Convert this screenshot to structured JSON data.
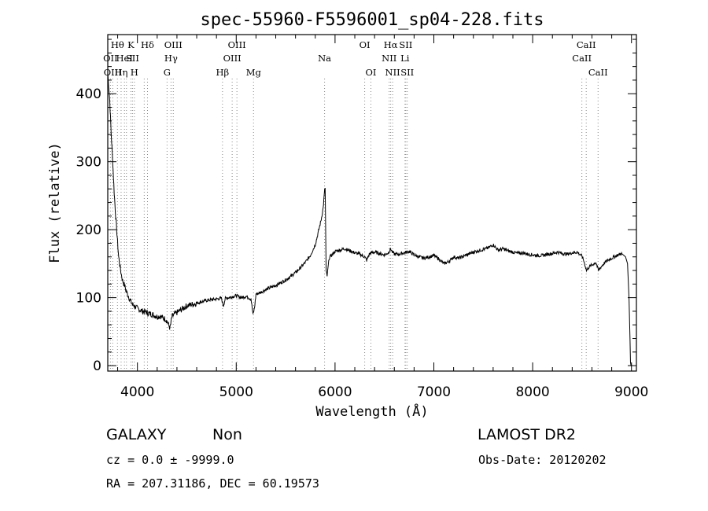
{
  "chart_data": {
    "type": "line",
    "title": "spec-55960-F5596001_sp04-228.fits",
    "xlabel": "Wavelength (Å)",
    "ylabel": "Flux (relative)",
    "xlim": [
      3700,
      9050
    ],
    "ylim": [
      -8,
      487
    ],
    "x_ticks": [
      4000,
      5000,
      6000,
      7000,
      8000,
      9000
    ],
    "y_ticks": [
      0,
      100,
      200,
      300,
      400
    ],
    "grid": false,
    "line_color": "#000000",
    "series": [
      {
        "x": [
          3700,
          3720,
          3735,
          3750,
          3765,
          3780,
          3795,
          3810,
          3830,
          3850,
          3870,
          3890,
          3910,
          3930,
          3950,
          3970,
          3990,
          4010,
          4030,
          4050,
          4080,
          4110,
          4140,
          4170,
          4200,
          4230,
          4260,
          4290,
          4310,
          4330,
          4350,
          4380,
          4420,
          4460,
          4500,
          4550,
          4600,
          4650,
          4700,
          4750,
          4800,
          4850,
          4870,
          4890,
          4920,
          4950,
          5000,
          5050,
          5100,
          5150,
          5170,
          5185,
          5200,
          5250,
          5300,
          5350,
          5400,
          5450,
          5500,
          5550,
          5600,
          5650,
          5700,
          5750,
          5800,
          5830,
          5860,
          5880,
          5890,
          5895,
          5900,
          5910,
          5920,
          5940,
          5960,
          5980,
          6000,
          6050,
          6100,
          6150,
          6200,
          6250,
          6300,
          6320,
          6350,
          6400,
          6450,
          6500,
          6540,
          6563,
          6580,
          6600,
          6650,
          6700,
          6750,
          6800,
          6850,
          6900,
          6950,
          7000,
          7050,
          7100,
          7150,
          7200,
          7250,
          7300,
          7350,
          7400,
          7450,
          7500,
          7550,
          7580,
          7600,
          7650,
          7700,
          7750,
          7800,
          7850,
          7900,
          7950,
          8000,
          8050,
          8100,
          8150,
          8200,
          8250,
          8300,
          8350,
          8400,
          8450,
          8500,
          8520,
          8545,
          8570,
          8600,
          8640,
          8665,
          8690,
          8720,
          8750,
          8800,
          8850,
          8900,
          8940,
          8960,
          8975,
          8985,
          8990,
          8995
        ],
        "y": [
          430,
          390,
          340,
          300,
          255,
          220,
          190,
          160,
          140,
          125,
          118,
          108,
          102,
          95,
          90,
          88,
          85,
          83,
          82,
          80,
          79,
          77,
          76,
          74,
          72,
          73,
          70,
          68,
          62,
          55,
          72,
          76,
          80,
          84,
          88,
          90,
          92,
          94,
          96,
          97,
          98,
          99,
          88,
          99,
          100,
          101,
          103,
          100,
          102,
          98,
          75,
          85,
          105,
          108,
          112,
          115,
          118,
          122,
          126,
          131,
          137,
          144,
          152,
          162,
          178,
          196,
          215,
          232,
          250,
          258,
          262,
          138,
          132,
          158,
          162,
          165,
          168,
          170,
          172,
          169,
          166,
          164,
          160,
          155,
          165,
          167,
          165,
          163,
          166,
          172,
          167,
          164,
          164,
          166,
          168,
          163,
          160,
          158,
          160,
          162,
          157,
          150,
          153,
          160,
          158,
          161,
          164,
          167,
          169,
          171,
          173,
          176,
          178,
          170,
          172,
          169,
          167,
          165,
          166,
          164,
          163,
          162,
          162,
          164,
          165,
          167,
          165,
          164,
          166,
          167,
          161,
          153,
          140,
          145,
          148,
          152,
          140,
          145,
          150,
          154,
          158,
          162,
          165,
          160,
          150,
          100,
          40,
          5,
          0
        ]
      }
    ],
    "lines": [
      {
        "x": 3727,
        "row": 1,
        "label": "OII"
      },
      {
        "x": 3750,
        "row": 2,
        "label": "OIII"
      },
      {
        "x": 3798,
        "row": 0,
        "label": "Hθ"
      },
      {
        "x": 3835,
        "row": 2,
        "label": "Hη"
      },
      {
        "x": 3869,
        "row": 1,
        "label": "HeI"
      },
      {
        "x": 3889,
        "row": 1,
        "label": ""
      },
      {
        "x": 3934,
        "row": 0,
        "label": "K"
      },
      {
        "x": 3950,
        "row": 1,
        "label": "SII"
      },
      {
        "x": 3969,
        "row": 2,
        "label": "H"
      },
      {
        "x": 4069,
        "row": 1,
        "label": ""
      },
      {
        "x": 4102,
        "row": 0,
        "label": "Hδ"
      },
      {
        "x": 4300,
        "row": 2,
        "label": "G"
      },
      {
        "x": 4340,
        "row": 1,
        "label": "Hγ"
      },
      {
        "x": 4363,
        "row": 0,
        "label": "OIII"
      },
      {
        "x": 4861,
        "row": 2,
        "label": "Hβ"
      },
      {
        "x": 4959,
        "row": 1,
        "label": "OIII"
      },
      {
        "x": 5007,
        "row": 0,
        "label": "OIII"
      },
      {
        "x": 5175,
        "row": 2,
        "label": "Mg"
      },
      {
        "x": 5894,
        "row": 1,
        "label": "Na"
      },
      {
        "x": 6300,
        "row": 0,
        "label": "OI"
      },
      {
        "x": 6363,
        "row": 2,
        "label": "OI"
      },
      {
        "x": 6548,
        "row": 1,
        "label": "NII"
      },
      {
        "x": 6563,
        "row": 0,
        "label": "Hα"
      },
      {
        "x": 6583,
        "row": 2,
        "label": "NII"
      },
      {
        "x": 6708,
        "row": 1,
        "label": "Li"
      },
      {
        "x": 6716,
        "row": 0,
        "label": "SII"
      },
      {
        "x": 6731,
        "row": 2,
        "label": "SII"
      },
      {
        "x": 8498,
        "row": 1,
        "label": "CaII"
      },
      {
        "x": 8542,
        "row": 0,
        "label": "CaII"
      },
      {
        "x": 8662,
        "row": 2,
        "label": "CaII"
      }
    ]
  },
  "footer": {
    "class_label": "GALAXY",
    "subclass_label": "Non",
    "survey_label": "LAMOST  DR2",
    "cz_text": "cz = 0.0 ± -9999.0",
    "obs_date_text": "Obs-Date: 20120202",
    "radec_text": "RA = 207.31186, DEC =  60.19573"
  }
}
